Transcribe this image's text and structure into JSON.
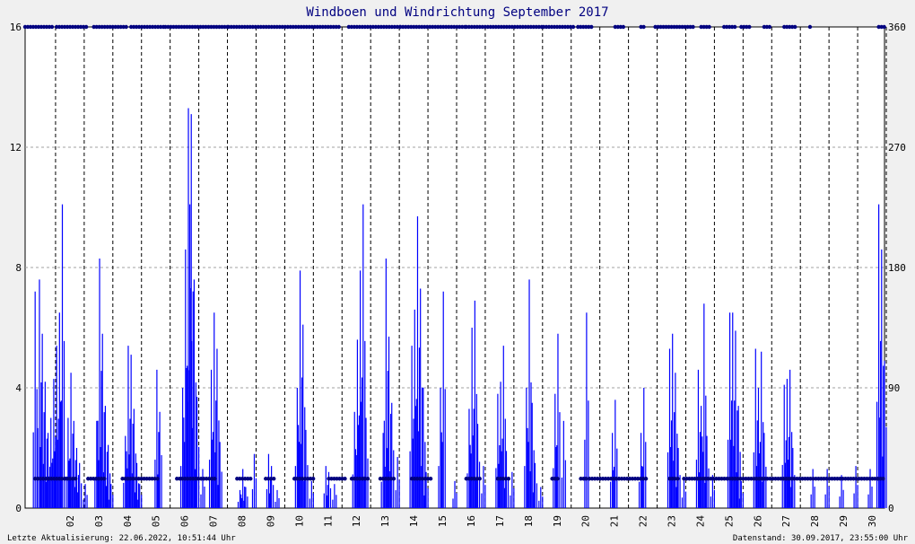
{
  "chart_data": {
    "type": "bar",
    "title": "Windboen und Windrichtung September 2017",
    "title_color": "#000080",
    "xlabel": "",
    "ylabel": "",
    "ylim": [
      0,
      16
    ],
    "y2lim": [
      0,
      360
    ],
    "yticks": [
      "0",
      "4",
      "8",
      "12",
      "16"
    ],
    "y2ticks": [
      "0",
      "90",
      "180",
      "270",
      "360"
    ],
    "xlim": [
      1,
      31
    ],
    "xticks": [
      "02",
      "03",
      "04",
      "05",
      "06",
      "07",
      "08",
      "09",
      "10",
      "11",
      "12",
      "13",
      "14",
      "15",
      "16",
      "17",
      "18",
      "19",
      "20",
      "21",
      "22",
      "23",
      "24",
      "25",
      "26",
      "27",
      "28",
      "29",
      "30"
    ],
    "grid": true,
    "series": [
      {
        "axis": "left",
        "color": "#0000ff",
        "style": "impulse",
        "x": [
          1.35,
          1.5,
          1.6,
          1.7,
          1.8,
          1.9,
          2.0,
          2.1,
          2.2,
          2.3,
          2.5,
          2.6,
          2.7,
          2.8,
          2.9,
          3.1,
          3.5,
          3.6,
          3.7,
          3.8,
          3.9,
          4.0,
          4.5,
          4.6,
          4.7,
          4.8,
          4.9,
          5.0,
          5.6,
          5.7,
          6.5,
          6.6,
          6.7,
          6.75,
          6.8,
          6.9,
          7.0,
          7.2,
          7.5,
          7.6,
          7.7,
          7.8,
          8.5,
          8.6,
          8.7,
          9.0,
          9.5,
          9.6,
          9.8,
          10.5,
          10.6,
          10.7,
          10.8,
          11.0,
          11.5,
          11.6,
          11.8,
          12.5,
          12.6,
          12.7,
          12.8,
          12.9,
          13.5,
          13.6,
          13.7,
          13.8,
          14.0,
          14.5,
          14.6,
          14.7,
          14.8,
          14.9,
          15.0,
          15.5,
          15.6,
          16.0,
          16.5,
          16.6,
          16.7,
          16.8,
          17.0,
          17.5,
          17.6,
          17.7,
          17.8,
          18.0,
          18.5,
          18.6,
          18.7,
          18.8,
          19.0,
          19.5,
          19.6,
          19.8,
          20.6,
          21.5,
          21.6,
          22.5,
          22.6,
          23.5,
          23.6,
          23.7,
          23.8,
          24.0,
          24.5,
          24.6,
          24.7,
          24.8,
          25.0,
          25.6,
          25.7,
          25.8,
          25.9,
          26.0,
          26.5,
          26.6,
          26.7,
          26.8,
          27.5,
          27.6,
          27.7,
          27.8,
          28.5,
          29.0,
          29.5,
          30.0,
          30.5,
          30.8,
          30.9,
          31.0
        ],
        "values": [
          7.2,
          7.6,
          5.8,
          4.2,
          2.5,
          3.0,
          4.3,
          5.4,
          6.5,
          10.1,
          3.0,
          4.5,
          2.9,
          2.0,
          1.5,
          0.8,
          2.9,
          8.3,
          5.8,
          3.4,
          2.1,
          0.8,
          2.4,
          5.4,
          5.1,
          3.3,
          1.5,
          0.8,
          4.6,
          3.2,
          4.0,
          8.6,
          13.3,
          10.1,
          13.1,
          7.6,
          3.7,
          1.3,
          4.6,
          6.5,
          5.3,
          2.2,
          0.6,
          1.3,
          0.7,
          1.8,
          1.8,
          1.4,
          0.6,
          4.0,
          7.9,
          6.1,
          2.6,
          0.9,
          1.4,
          1.2,
          0.8,
          3.2,
          5.6,
          7.9,
          10.1,
          3.0,
          2.5,
          8.3,
          5.7,
          3.5,
          1.7,
          5.4,
          6.6,
          9.7,
          7.3,
          4.0,
          1.2,
          4.0,
          7.2,
          0.9,
          3.3,
          6.0,
          6.9,
          2.8,
          1.4,
          3.8,
          4.2,
          5.4,
          1.9,
          1.2,
          4.0,
          7.6,
          3.5,
          1.5,
          0.7,
          3.8,
          5.8,
          2.9,
          6.5,
          2.5,
          3.6,
          2.5,
          4.0,
          5.3,
          5.8,
          4.5,
          2.0,
          1.0,
          4.6,
          3.4,
          6.8,
          2.4,
          1.1,
          6.5,
          6.5,
          5.9,
          3.4,
          0.9,
          5.3,
          4.0,
          5.2,
          2.5,
          4.1,
          4.3,
          4.6,
          2.0,
          1.3,
          1.3,
          1.1,
          1.4,
          1.3,
          10.1,
          8.6,
          4.9
        ]
      },
      {
        "axis": "right",
        "color": "#000080",
        "style": "points",
        "segments": [
          [
            [
              1.0,
              2.0,
              360
            ],
            [
              2.1,
              3.2,
              360
            ],
            [
              3.4,
              4.6,
              360
            ],
            [
              4.7,
              5.9,
              360
            ],
            [
              5.9,
              8.1,
              360
            ],
            [
              8.1,
              12.0,
              360
            ],
            [
              12.3,
              14.1,
              360
            ],
            [
              14.1,
              16.4,
              360
            ],
            [
              16.4,
              19.1,
              360
            ],
            [
              19.1,
              20.2,
              360
            ],
            [
              20.3,
              20.8,
              360
            ],
            [
              21.6,
              21.9,
              360
            ],
            [
              22.5,
              22.6,
              360
            ],
            [
              23.0,
              24.4,
              360
            ],
            [
              24.6,
              24.9,
              360
            ],
            [
              25.4,
              25.8,
              360
            ],
            [
              26.0,
              26.3,
              360
            ],
            [
              26.8,
              27.0,
              360
            ],
            [
              27.5,
              27.9,
              360
            ],
            [
              28.4,
              28.4,
              360
            ],
            [
              30.8,
              31.0,
              360
            ]
          ],
          [
            [
              1.35,
              2.8,
              22
            ],
            [
              3.2,
              3.8,
              22
            ],
            [
              4.4,
              5.7,
              22
            ],
            [
              6.3,
              7.7,
              22
            ],
            [
              8.4,
              8.9,
              22
            ],
            [
              9.4,
              9.7,
              22
            ],
            [
              10.4,
              11.1,
              22
            ],
            [
              11.6,
              12.2,
              22
            ],
            [
              12.4,
              13.0,
              22
            ],
            [
              13.4,
              13.9,
              22
            ],
            [
              14.5,
              15.2,
              22
            ],
            [
              16.4,
              16.9,
              22
            ],
            [
              17.5,
              17.9,
              22
            ],
            [
              19.4,
              19.6,
              22
            ],
            [
              20.4,
              20.6,
              22
            ],
            [
              20.7,
              22.7,
              22
            ],
            [
              23.5,
              23.8,
              22
            ],
            [
              24.0,
              31.0,
              22
            ]
          ]
        ]
      }
    ]
  },
  "footer": {
    "left": "Letzte Aktualisierung: 22.06.2022, 10:51:44 Uhr",
    "right": "Datenstand: 30.09.2017, 23:55:00 Uhr"
  }
}
